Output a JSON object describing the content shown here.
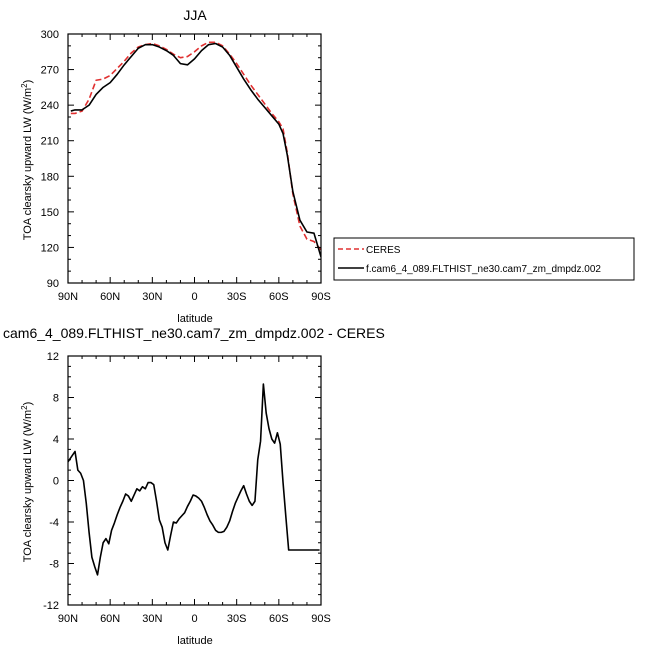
{
  "chart_data": [
    {
      "type": "line",
      "title": "JJA",
      "xlabel": "latitude",
      "ylabel": "TOA clearsky upward LW (W/m",
      "ylabel_sup": "2",
      "ylabel_close": ")",
      "xlim": [
        90,
        -90
      ],
      "ylim": [
        90,
        300
      ],
      "xticks": [
        90,
        60,
        30,
        0,
        -30,
        -60,
        -90
      ],
      "xtick_labels": [
        "90N",
        "60N",
        "30N",
        "0",
        "30S",
        "60S",
        "90S"
      ],
      "yticks": [
        90,
        120,
        150,
        180,
        210,
        240,
        270,
        300
      ],
      "grid": false,
      "legend_position": "outside-right-bottom",
      "series": [
        {
          "name": "CERES",
          "color": "#e03030",
          "dash": "dashed",
          "x": [
            88,
            85,
            80,
            75,
            70,
            65,
            60,
            55,
            50,
            45,
            40,
            35,
            30,
            25,
            20,
            15,
            10,
            5,
            0,
            -5,
            -10,
            -15,
            -20,
            -25,
            -30,
            -35,
            -40,
            -45,
            -50,
            -55,
            -60,
            -63,
            -66,
            -70,
            -75,
            -80,
            -85,
            -90
          ],
          "y": [
            233,
            233,
            235,
            245,
            261,
            262,
            265,
            271,
            277,
            284,
            289,
            291,
            292,
            290,
            287,
            283,
            280,
            281,
            285,
            290,
            293,
            293,
            290,
            283,
            275,
            266,
            257,
            249,
            241,
            233,
            226,
            220,
            200,
            165,
            138,
            127,
            125,
            118
          ]
        },
        {
          "name": "f.cam6_4_089.FLTHIST_ne30.cam7_zm_dmpdz.002",
          "color": "#000000",
          "dash": "solid",
          "x": [
            88,
            85,
            80,
            75,
            70,
            65,
            60,
            55,
            50,
            45,
            40,
            35,
            30,
            25,
            20,
            15,
            10,
            5,
            0,
            -5,
            -10,
            -15,
            -20,
            -25,
            -30,
            -35,
            -40,
            -45,
            -50,
            -55,
            -60,
            -63,
            -66,
            -70,
            -75,
            -80,
            -85,
            -90
          ],
          "y": [
            235,
            236,
            236,
            240,
            249,
            255,
            259,
            266,
            274,
            281,
            288,
            291,
            291,
            289,
            286,
            282,
            275,
            274,
            279,
            286,
            291,
            292,
            289,
            282,
            272,
            262,
            253,
            245,
            238,
            231,
            224,
            216,
            198,
            167,
            143,
            133,
            132,
            112
          ]
        }
      ]
    },
    {
      "type": "line",
      "title": "cam6_4_089.FLTHIST_ne30.cam7_zm_dmpdz.002 - CERES",
      "xlabel": "latitude",
      "ylabel": "TOA clearsky upward LW (W/m",
      "ylabel_sup": "2",
      "ylabel_close": ")",
      "xlim": [
        90,
        -90
      ],
      "ylim": [
        -12,
        12
      ],
      "xticks": [
        90,
        60,
        30,
        0,
        -30,
        -60,
        -90
      ],
      "xtick_labels": [
        "90N",
        "60N",
        "30N",
        "0",
        "30S",
        "60S",
        "90S"
      ],
      "yticks": [
        -12,
        -8,
        -4,
        0,
        4,
        8,
        12
      ],
      "grid": false,
      "series": [
        {
          "color": "#000000",
          "dash": "solid",
          "x": [
            90,
            87,
            85,
            83,
            81,
            79,
            77,
            75,
            73,
            71,
            69,
            67,
            65,
            63,
            61,
            59,
            57,
            55,
            53,
            51,
            49,
            47,
            45,
            43,
            41,
            39,
            37,
            35,
            33,
            31,
            29,
            27,
            25,
            23,
            21,
            19,
            17,
            15,
            13,
            11,
            9,
            7,
            5,
            3,
            1,
            -1,
            -3,
            -5,
            -7,
            -9,
            -11,
            -13,
            -15,
            -17,
            -19,
            -21,
            -23,
            -25,
            -27,
            -29,
            -31,
            -33,
            -35,
            -37,
            -39,
            -41,
            -43,
            -45,
            -47,
            -49,
            -51,
            -53,
            -55,
            -57,
            -59,
            -61,
            -63,
            -65,
            -67,
            -69,
            -71,
            -73,
            -75,
            -77,
            -79,
            -81,
            -83,
            -85,
            -87,
            -89
          ],
          "y": [
            1.8,
            2.4,
            2.8,
            1.0,
            0.7,
            0,
            -2.2,
            -5.0,
            -7.4,
            -8.3,
            -9.1,
            -7.4,
            -6.0,
            -5.6,
            -6.1,
            -4.8,
            -4.1,
            -3.3,
            -2.6,
            -2.0,
            -1.3,
            -1.5,
            -2.0,
            -1.4,
            -0.8,
            -1.0,
            -0.6,
            -0.8,
            -0.2,
            -0.2,
            -0.4,
            -2.0,
            -3.8,
            -4.5,
            -6.0,
            -6.7,
            -5.3,
            -4.0,
            -4.1,
            -3.7,
            -3.4,
            -3.1,
            -2.5,
            -2.0,
            -1.4,
            -1.5,
            -1.7,
            -2.0,
            -2.6,
            -3.3,
            -3.9,
            -4.3,
            -4.8,
            -5.0,
            -5.0,
            -4.9,
            -4.5,
            -3.9,
            -3.0,
            -2.2,
            -1.6,
            -1.0,
            -0.5,
            -1.3,
            -2.0,
            -2.4,
            -2.0,
            2.0,
            3.8,
            9.3,
            6.5,
            5.0,
            4.0,
            3.6,
            4.6,
            3.5,
            -0.2,
            -3.5,
            -6.7,
            -6.7,
            -6.7,
            -6.7,
            -6.7,
            -6.7,
            -6.7,
            -6.7,
            -6.7,
            -6.7,
            -6.7,
            -6.7
          ]
        }
      ]
    }
  ]
}
